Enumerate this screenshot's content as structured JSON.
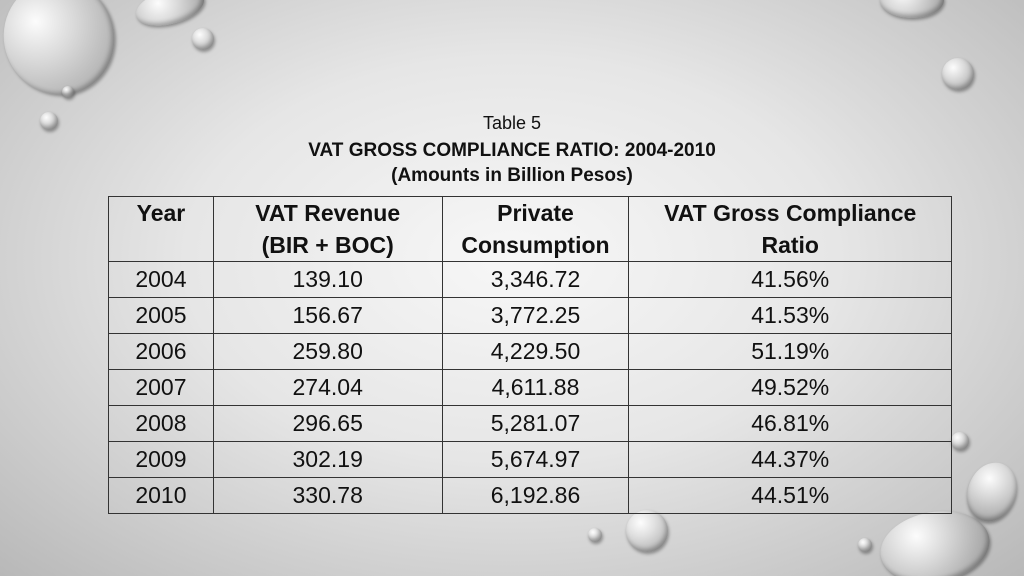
{
  "caption": {
    "line1": "Table 5",
    "line2": "VAT GROSS COMPLIANCE RATIO: 2004-2010",
    "line3": "(Amounts in Billion Pesos)"
  },
  "table": {
    "headers": [
      {
        "line1": "Year",
        "line2": ""
      },
      {
        "line1": "VAT Revenue",
        "line2": "(BIR + BOC)"
      },
      {
        "line1": "Private",
        "line2": "Consumption"
      },
      {
        "line1": "VAT Gross Compliance",
        "line2": "Ratio"
      }
    ],
    "rows": [
      [
        "2004",
        "139.10",
        "3,346.72",
        "41.56%"
      ],
      [
        "2005",
        "156.67",
        "3,772.25",
        "41.53%"
      ],
      [
        "2006",
        "259.80",
        "4,229.50",
        "51.19%"
      ],
      [
        "2007",
        "274.04",
        "4,611.88",
        "49.52%"
      ],
      [
        "2008",
        "296.65",
        "5,281.07",
        "46.81%"
      ],
      [
        "2009",
        "302.19",
        "5,674.97",
        "44.37%"
      ],
      [
        "2010",
        "330.78",
        "6,192.86",
        "44.51%"
      ]
    ]
  }
}
